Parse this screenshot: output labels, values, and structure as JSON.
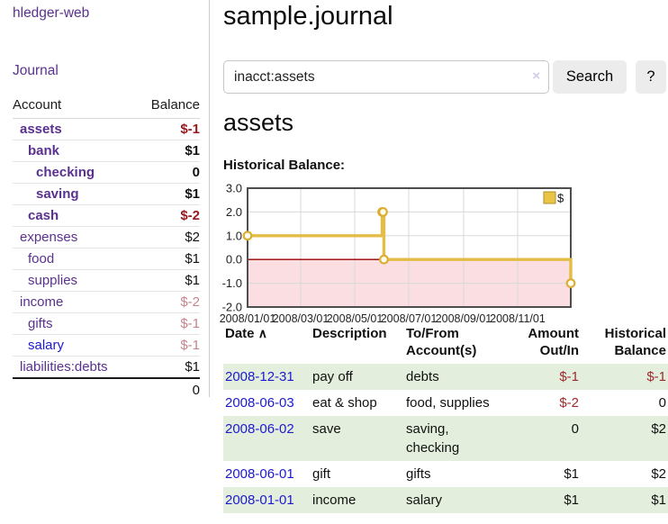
{
  "colors": {
    "purple": "#5a318f",
    "link_blue": "#1d19cf",
    "negative_strong": "#9a191c",
    "negative_soft": "#c5858b",
    "negative_table": "#9c2b2d",
    "row_highlight_green": "#e3efdc"
  },
  "sidebar": {
    "brand": "hledger-web",
    "journal_link": "Journal",
    "accounts_table": {
      "headers": {
        "account": "Account",
        "balance": "Balance"
      },
      "rows": [
        {
          "account": "assets",
          "balance": "$-1",
          "depth": 1,
          "bold": true,
          "balance_style": "neg-strong",
          "link_style": ""
        },
        {
          "account": "bank",
          "balance": "$1",
          "depth": 2,
          "bold": true,
          "balance_style": "",
          "link_style": ""
        },
        {
          "account": "checking",
          "balance": "0",
          "depth": 3,
          "bold": true,
          "balance_style": "",
          "link_style": ""
        },
        {
          "account": "saving",
          "balance": "$1",
          "depth": 3,
          "bold": true,
          "balance_style": "",
          "link_style": ""
        },
        {
          "account": "cash",
          "balance": "$-2",
          "depth": 2,
          "bold": true,
          "balance_style": "neg-strong",
          "link_style": ""
        },
        {
          "account": "expenses",
          "balance": "$2",
          "depth": 1,
          "bold": false,
          "balance_style": "",
          "link_style": ""
        },
        {
          "account": "food",
          "balance": "$1",
          "depth": 2,
          "bold": false,
          "balance_style": "",
          "link_style": ""
        },
        {
          "account": "supplies",
          "balance": "$1",
          "depth": 2,
          "bold": false,
          "balance_style": "",
          "link_style": ""
        },
        {
          "account": "income",
          "balance": "$-2",
          "depth": 1,
          "bold": false,
          "balance_style": "neg-soft",
          "link_style": ""
        },
        {
          "account": "gifts",
          "balance": "$-1",
          "depth": 2,
          "bold": false,
          "balance_style": "neg-soft",
          "link_style": ""
        },
        {
          "account": "salary",
          "balance": "$-1",
          "depth": 2,
          "bold": false,
          "balance_style": "neg-soft",
          "link_style": "blue"
        },
        {
          "account": "liabilities:debts",
          "balance": "$1",
          "depth": 1,
          "bold": false,
          "balance_style": "",
          "link_style": ""
        }
      ],
      "total": "0"
    }
  },
  "main": {
    "title": "sample.journal",
    "search": {
      "value": "inacct:assets",
      "clear_icon": "×",
      "button_label": "Search",
      "help_label": "?"
    },
    "account_heading": "assets",
    "chart_label": "Historical Balance:",
    "register_table": {
      "headers": {
        "date": "Date",
        "sort_indicator": "∧",
        "description": "Description",
        "accounts": "To/From Account(s)",
        "amount": "Amount Out/In",
        "balance": "Historical Balance"
      },
      "rows": [
        {
          "date": "2008-12-31",
          "description": "pay off",
          "accounts": "debts",
          "amount": "$-1",
          "amount_negative": true,
          "balance": "$-1",
          "balance_negative": true,
          "highlight": true
        },
        {
          "date": "2008-06-03",
          "description": "eat & shop",
          "accounts": "food, supplies",
          "amount": "$-2",
          "amount_negative": true,
          "balance": "0",
          "balance_negative": false,
          "highlight": false
        },
        {
          "date": "2008-06-02",
          "description": "save",
          "accounts": "saving, checking",
          "amount": "0",
          "amount_negative": false,
          "balance": "$2",
          "balance_negative": false,
          "highlight": true
        },
        {
          "date": "2008-06-01",
          "description": "gift",
          "accounts": "gifts",
          "amount": "$1",
          "amount_negative": false,
          "balance": "$2",
          "balance_negative": false,
          "highlight": false
        },
        {
          "date": "2008-01-01",
          "description": "income",
          "accounts": "salary",
          "amount": "$1",
          "amount_negative": false,
          "balance": "$1",
          "balance_negative": false,
          "highlight": true
        }
      ]
    }
  },
  "chart_data": {
    "type": "line",
    "step": true,
    "title": "Historical Balance:",
    "legend": "$",
    "legend_position": "top-right",
    "ylim": [
      -2.0,
      3.0
    ],
    "yticks": [
      3.0,
      2.0,
      1.0,
      0.0,
      -1.0,
      -2.0
    ],
    "x_start": "2008-01-01",
    "x_end": "2008-12-31",
    "xticks": [
      {
        "date": "2008-01-01",
        "label": "2008/01/01"
      },
      {
        "date": "2008-03-01",
        "label": "2008/03/01"
      },
      {
        "date": "2008-05-01",
        "label": "2008/05/01"
      },
      {
        "date": "2008-07-01",
        "label": "2008/07/01"
      },
      {
        "date": "2008-09-01",
        "label": "2008/09/01"
      },
      {
        "date": "2008-11-01",
        "label": "2008/11/01"
      }
    ],
    "series": [
      {
        "name": "$",
        "color": "#e4bd47",
        "points": [
          [
            "2008-01-01",
            1
          ],
          [
            "2008-06-01",
            2
          ],
          [
            "2008-06-02",
            2
          ],
          [
            "2008-06-03",
            0
          ],
          [
            "2008-12-31",
            -1
          ]
        ]
      }
    ],
    "grid": true,
    "colors": {
      "negative_fill": "#fbdee1",
      "zero_line": "#990000",
      "border": "#4e4e4e",
      "gridline": "#d8d8d8",
      "marker_fill": "#fffdf0",
      "marker_stroke": "#dcae33",
      "legend_fill": "#eac446",
      "legend_stroke": "#b2912c"
    }
  }
}
